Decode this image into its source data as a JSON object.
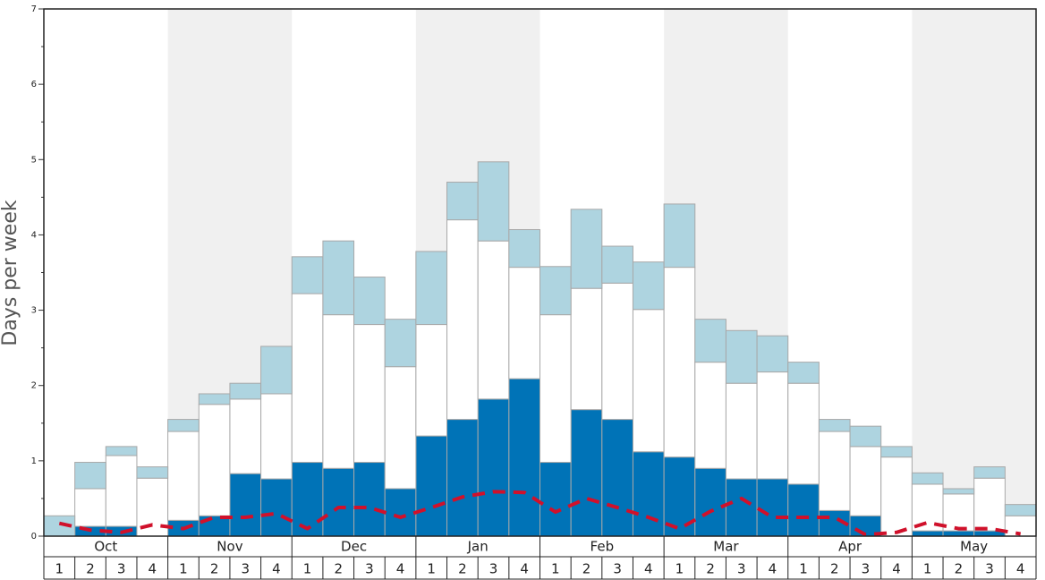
{
  "chart_data": {
    "type": "bar",
    "stacked": true,
    "ylabel": "Days per week",
    "ylim": [
      0,
      7
    ],
    "yticks": [
      0,
      1,
      2,
      3,
      4,
      5,
      6,
      7
    ],
    "yminorticks": [
      0.5,
      1.5,
      2.5,
      3.5,
      4.5,
      5.5,
      6.5
    ],
    "months": [
      "Oct",
      "Nov",
      "Dec",
      "Jan",
      "Feb",
      "Mar",
      "Apr",
      "May"
    ],
    "categories": [
      "1",
      "2",
      "3",
      "4",
      "1",
      "2",
      "3",
      "4",
      "1",
      "2",
      "3",
      "4",
      "1",
      "2",
      "3",
      "4",
      "1",
      "2",
      "3",
      "4",
      "1",
      "2",
      "3",
      "4",
      "1",
      "2",
      "3",
      "4",
      "1",
      "2",
      "3",
      "4"
    ],
    "series": [
      {
        "color": "#0073b7",
        "values": [
          0,
          0.13,
          0.13,
          0,
          0.21,
          0.27,
          0.83,
          0.76,
          0.98,
          0.9,
          0.98,
          0.63,
          1.33,
          1.55,
          1.82,
          2.09,
          0.98,
          1.68,
          1.55,
          1.12,
          1.05,
          0.9,
          0.76,
          0.76,
          0.69,
          0.34,
          0.27,
          0,
          0.07,
          0.07,
          0.07,
          0
        ]
      },
      {
        "color": "#ffffff",
        "values": [
          0,
          0.5,
          0.94,
          0.77,
          1.18,
          1.48,
          0.99,
          1.13,
          2.24,
          2.04,
          1.83,
          1.62,
          1.48,
          2.65,
          2.1,
          1.48,
          1.96,
          1.61,
          1.81,
          1.89,
          2.52,
          1.41,
          1.27,
          1.42,
          1.34,
          1.05,
          0.92,
          1.05,
          0.62,
          0.49,
          0.7,
          0.27
        ]
      },
      {
        "color": "#aed4e0",
        "values": [
          0.27,
          0.35,
          0.12,
          0.15,
          0.16,
          0.14,
          0.21,
          0.63,
          0.49,
          0.98,
          0.63,
          0.63,
          0.97,
          0.5,
          1.05,
          0.5,
          0.64,
          1.05,
          0.49,
          0.63,
          0.84,
          0.57,
          0.7,
          0.48,
          0.28,
          0.16,
          0.27,
          0.14,
          0.15,
          0.07,
          0.15,
          0.15
        ]
      },
      {
        "type": "line",
        "color": "#d0112b",
        "dashed": true,
        "values": [
          0.17,
          0.08,
          0.05,
          0.15,
          0.1,
          0.25,
          0.25,
          0.3,
          0.1,
          0.38,
          0.38,
          0.25,
          0.38,
          0.52,
          0.59,
          0.58,
          0.32,
          0.5,
          0.38,
          0.25,
          0.1,
          0.33,
          0.5,
          0.25,
          0.25,
          0.25,
          0.02,
          0.05,
          0.18,
          0.1,
          0.1,
          0.03
        ]
      }
    ]
  }
}
